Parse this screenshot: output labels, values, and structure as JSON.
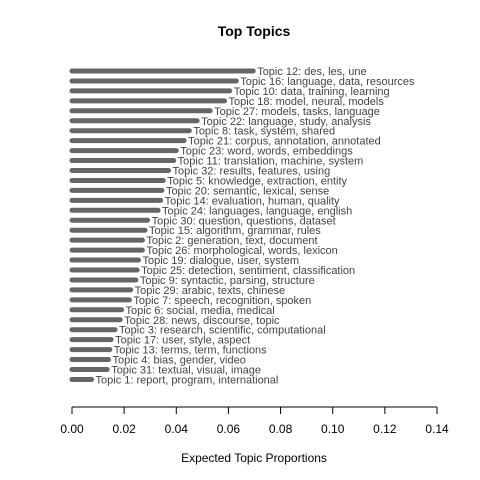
{
  "chart_data": {
    "type": "bar",
    "orientation": "horizontal",
    "title": "Top Topics",
    "xlabel": "Expected Topic Proportions",
    "ylabel": "",
    "xlim": [
      0,
      0.14
    ],
    "xticks": [
      "0.00",
      "0.02",
      "0.04",
      "0.06",
      "0.08",
      "0.10",
      "0.12",
      "0.14"
    ],
    "grid": false,
    "bar_color": "#666666",
    "categories": [
      "Topic 12: des, les, une",
      "Topic 16: language, data, resources",
      "Topic 10: data, training, learning",
      "Topic 18: model, neural, models",
      "Topic 27: models, tasks, language",
      "Topic 22: language, study, analysis",
      "Topic 8: task, system, shared",
      "Topic 21: corpus, annotation, annotated",
      "Topic 23: word, words, embeddings",
      "Topic 11: translation, machine, system",
      "Topic 32: results, features, using",
      "Topic 5: knowledge, extraction, entity",
      "Topic 20: semantic, lexical, sense",
      "Topic 14: evaluation, human, quality",
      "Topic 24: languages, language, english",
      "Topic 30: question, questions, dataset",
      "Topic 15: algorithm, grammar, rules",
      "Topic 2: generation, text, document",
      "Topic 26: morphological, words, lexicon",
      "Topic 19: dialogue, user, system",
      "Topic 25: detection, sentiment, classification",
      "Topic 9: syntactic, parsing, structure",
      "Topic 29: arabic, texts, chinese",
      "Topic 7: speech, recognition, spoken",
      "Topic 6: social, media, medical",
      "Topic 28: news, discourse, topic",
      "Topic 3: research, scientific, computational",
      "Topic 17: user, style, aspect",
      "Topic 13: terms, term, functions",
      "Topic 4: bias, gender, video",
      "Topic 31: textual, visual, image",
      "Topic 1: report, program, international"
    ],
    "values": [
      0.0695,
      0.063,
      0.0605,
      0.0585,
      0.053,
      0.048,
      0.045,
      0.043,
      0.04,
      0.039,
      0.037,
      0.035,
      0.0345,
      0.034,
      0.033,
      0.029,
      0.028,
      0.027,
      0.027,
      0.0255,
      0.025,
      0.0245,
      0.0225,
      0.022,
      0.019,
      0.0185,
      0.0165,
      0.015,
      0.0145,
      0.014,
      0.0135,
      0.0075
    ]
  }
}
